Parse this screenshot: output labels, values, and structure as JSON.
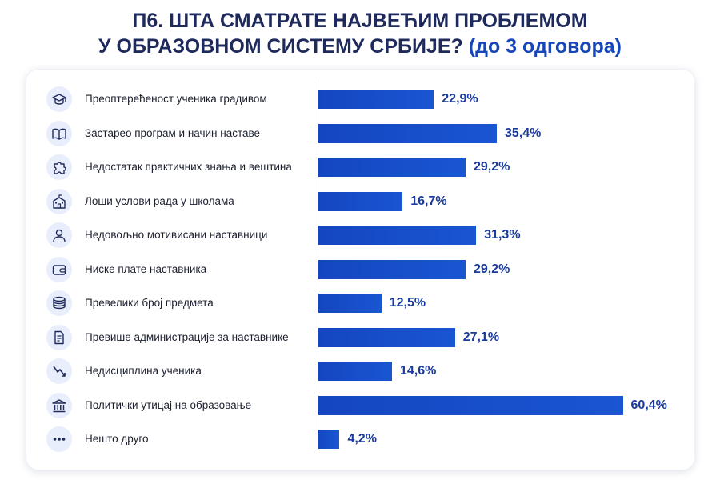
{
  "title": {
    "line1": "П6. ШТА СМАТРАТЕ НАЈВЕЋИМ ПРОБЛЕМОМ",
    "line2": "У ОБРАЗОВНОМ СИСТЕМУ СРБИЈЕ?",
    "note": "(до 3 одговора)"
  },
  "colors": {
    "bar": "#1446c0",
    "value_text": "#1a3a9c",
    "title": "#1f2a5c",
    "accent": "#1746b8"
  },
  "chart_data": {
    "type": "bar",
    "orientation": "horizontal",
    "unit": "%",
    "xlim": [
      0,
      70
    ],
    "grid": false,
    "legend": "none",
    "categories": [
      "Преоптерећеност ученика градивом",
      "Застарео програм и начин наставе",
      "Недостатак практичних знања и вештина",
      "Лоши услови рада у школама",
      "Недовољно мотивисани наставници",
      "Ниске плате наставника",
      "Превелики број предмета",
      "Превише администрације за наставнике",
      "Недисциплина ученика",
      "Политички утицај на образовање",
      "Нешто друго"
    ],
    "values": [
      22.9,
      35.4,
      29.2,
      16.7,
      31.3,
      29.2,
      12.5,
      27.1,
      14.6,
      60.4,
      4.2
    ],
    "value_labels": [
      "22,9%",
      "35,4%",
      "29,2%",
      "16,7%",
      "31,3%",
      "29,2%",
      "12,5%",
      "27,1%",
      "14,6%",
      "60,4%",
      "4,2%"
    ],
    "icons": [
      "graduation-cap-icon",
      "book-icon",
      "puzzle-icon",
      "school-building-icon",
      "person-icon",
      "wallet-icon",
      "stack-icon",
      "document-icon",
      "trend-down-icon",
      "institution-icon",
      "more-dots-icon"
    ]
  }
}
